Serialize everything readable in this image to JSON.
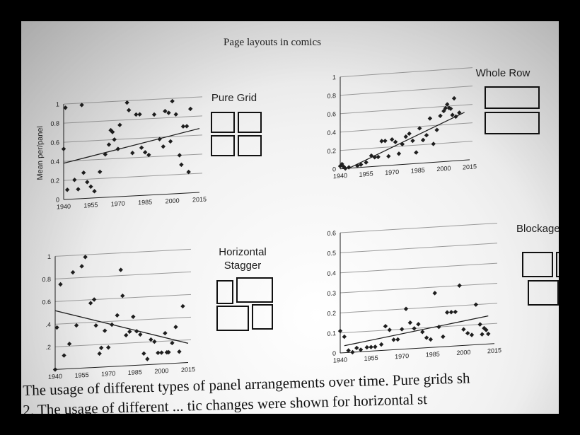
{
  "figure_title": "Page layouts in comics",
  "caption_line1": "The usage of different types of panel arrangements over time. Pure grids sh",
  "caption_line2": "2. The usage of different ... tic changes were shown for horizontal st",
  "colors": {
    "ink": "#1e1e1e",
    "grid": "#9a9a9a",
    "paper": "#f4f4f4"
  },
  "chart_data": [
    {
      "type": "scatter",
      "layout_label": "Pure Grid",
      "icon": "pure-grid-icon",
      "ylabel": "Mean per/panel",
      "xlim": [
        1940,
        2015
      ],
      "ylim": [
        0,
        1
      ],
      "xticks": [
        "1940",
        "1955",
        "1970",
        "1985",
        "2000",
        "2015"
      ],
      "yticks": [
        "0",
        "0.2",
        "0.4",
        "0.6",
        "0.8",
        "1"
      ],
      "trend": [
        [
          1940,
          0.38
        ],
        [
          2015,
          0.67
        ]
      ],
      "points": [
        [
          1940,
          0.53
        ],
        [
          1941,
          0.96
        ],
        [
          1942,
          0.1
        ],
        [
          1946,
          0.2
        ],
        [
          1948,
          0.1
        ],
        [
          1950,
          0.98
        ],
        [
          1951,
          0.27
        ],
        [
          1953,
          0.17
        ],
        [
          1955,
          0.12
        ],
        [
          1957,
          0.07
        ],
        [
          1960,
          0.27
        ],
        [
          1963,
          0.45
        ],
        [
          1965,
          0.55
        ],
        [
          1966,
          0.7
        ],
        [
          1967,
          0.68
        ],
        [
          1968,
          0.6
        ],
        [
          1970,
          0.5
        ],
        [
          1971,
          0.75
        ],
        [
          1975,
          0.98
        ],
        [
          1976,
          0.9
        ],
        [
          1978,
          0.45
        ],
        [
          1980,
          0.85
        ],
        [
          1982,
          0.85
        ],
        [
          1983,
          0.5
        ],
        [
          1985,
          0.45
        ],
        [
          1987,
          0.42
        ],
        [
          1990,
          0.84
        ],
        [
          1993,
          0.58
        ],
        [
          1995,
          0.5
        ],
        [
          1996,
          0.87
        ],
        [
          1998,
          0.85
        ],
        [
          1999,
          0.55
        ],
        [
          2000,
          0.97
        ],
        [
          2002,
          0.83
        ],
        [
          2004,
          0.4
        ],
        [
          2005,
          0.3
        ],
        [
          2006,
          0.7
        ],
        [
          2008,
          0.7
        ],
        [
          2009,
          0.22
        ],
        [
          2010,
          0.88
        ]
      ]
    },
    {
      "type": "scatter",
      "layout_label": "Whole Row",
      "icon": "whole-row-icon",
      "xlim": [
        1940,
        2015
      ],
      "ylim": [
        0,
        1
      ],
      "xticks": [
        "1940",
        "1955",
        "1970",
        "1985",
        "2000",
        "2015"
      ],
      "yticks": [
        "0",
        "0.2",
        "0.4",
        "0.6",
        "0.8",
        "1"
      ],
      "trend": [
        [
          1945,
          0.0
        ],
        [
          2012,
          0.52
        ]
      ],
      "points": [
        [
          1940,
          0.03
        ],
        [
          1941,
          0.05
        ],
        [
          1942,
          0.02
        ],
        [
          1943,
          0.0
        ],
        [
          1945,
          0.01
        ],
        [
          1950,
          0.02
        ],
        [
          1952,
          0.03
        ],
        [
          1955,
          0.05
        ],
        [
          1958,
          0.12
        ],
        [
          1960,
          0.1
        ],
        [
          1962,
          0.1
        ],
        [
          1964,
          0.27
        ],
        [
          1966,
          0.27
        ],
        [
          1968,
          0.1
        ],
        [
          1970,
          0.28
        ],
        [
          1972,
          0.25
        ],
        [
          1974,
          0.12
        ],
        [
          1976,
          0.22
        ],
        [
          1978,
          0.3
        ],
        [
          1980,
          0.33
        ],
        [
          1982,
          0.25
        ],
        [
          1984,
          0.12
        ],
        [
          1986,
          0.38
        ],
        [
          1988,
          0.25
        ],
        [
          1990,
          0.3
        ],
        [
          1992,
          0.48
        ],
        [
          1994,
          0.2
        ],
        [
          1996,
          0.35
        ],
        [
          1998,
          0.5
        ],
        [
          2000,
          0.55
        ],
        [
          2001,
          0.58
        ],
        [
          2002,
          0.62
        ],
        [
          2003,
          0.58
        ],
        [
          2004,
          0.57
        ],
        [
          2005,
          0.5
        ],
        [
          2006,
          0.68
        ],
        [
          2007,
          0.48
        ],
        [
          2009,
          0.52
        ]
      ]
    },
    {
      "type": "scatter",
      "layout_label": "Horizontal\nStagger",
      "icon": "horizontal-stagger-icon",
      "xlim": [
        1940,
        2015
      ],
      "ylim": [
        0,
        1
      ],
      "xticks": [
        "1940",
        "1955",
        "1970",
        "1985",
        "2000",
        "2015"
      ],
      "yticks": [
        "",
        ".2",
        ".4",
        "0.6",
        "0.8",
        "1"
      ],
      "trend": [
        [
          1940,
          0.52
        ],
        [
          2015,
          0.17
        ]
      ],
      "points": [
        [
          1940,
          0.0
        ],
        [
          1941,
          0.37
        ],
        [
          1943,
          0.75
        ],
        [
          1945,
          0.12
        ],
        [
          1948,
          0.22
        ],
        [
          1950,
          0.85
        ],
        [
          1952,
          0.38
        ],
        [
          1955,
          0.9
        ],
        [
          1957,
          0.98
        ],
        [
          1960,
          0.57
        ],
        [
          1962,
          0.6
        ],
        [
          1963,
          0.37
        ],
        [
          1965,
          0.12
        ],
        [
          1966,
          0.17
        ],
        [
          1968,
          0.32
        ],
        [
          1970,
          0.17
        ],
        [
          1972,
          0.37
        ],
        [
          1975,
          0.45
        ],
        [
          1977,
          0.85
        ],
        [
          1978,
          0.62
        ],
        [
          1980,
          0.27
        ],
        [
          1982,
          0.3
        ],
        [
          1984,
          0.43
        ],
        [
          1986,
          0.3
        ],
        [
          1988,
          0.27
        ],
        [
          1990,
          0.1
        ],
        [
          1992,
          0.05
        ],
        [
          1994,
          0.22
        ],
        [
          1996,
          0.2
        ],
        [
          1998,
          0.1
        ],
        [
          2000,
          0.1
        ],
        [
          2002,
          0.27
        ],
        [
          2003,
          0.1
        ],
        [
          2004,
          0.1
        ],
        [
          2006,
          0.18
        ],
        [
          2008,
          0.32
        ],
        [
          2010,
          0.1
        ],
        [
          2012,
          0.5
        ]
      ]
    },
    {
      "type": "scatter",
      "layout_label": "Blockage",
      "icon": "blockage-icon",
      "xlim": [
        1940,
        2015
      ],
      "ylim": [
        0,
        0.6
      ],
      "xticks": [
        "1940",
        "1955",
        "1970",
        "1985",
        "2000",
        "2015"
      ],
      "yticks": [
        "0",
        "0.1",
        "0.2",
        "0.3",
        "0.4",
        "0.5",
        "0.6"
      ],
      "trend": [
        [
          1942,
          0.035
        ],
        [
          2012,
          0.14
        ]
      ],
      "points": [
        [
          1940,
          0.11
        ],
        [
          1942,
          0.08
        ],
        [
          1944,
          0.01
        ],
        [
          1946,
          0.0
        ],
        [
          1948,
          0.02
        ],
        [
          1950,
          0.01
        ],
        [
          1953,
          0.02
        ],
        [
          1955,
          0.02
        ],
        [
          1957,
          0.02
        ],
        [
          1960,
          0.03
        ],
        [
          1962,
          0.12
        ],
        [
          1964,
          0.1
        ],
        [
          1966,
          0.05
        ],
        [
          1968,
          0.05
        ],
        [
          1970,
          0.1
        ],
        [
          1972,
          0.2
        ],
        [
          1974,
          0.13
        ],
        [
          1976,
          0.1
        ],
        [
          1978,
          0.12
        ],
        [
          1980,
          0.08
        ],
        [
          1982,
          0.05
        ],
        [
          1984,
          0.04
        ],
        [
          1986,
          0.27
        ],
        [
          1988,
          0.1
        ],
        [
          1990,
          0.05
        ],
        [
          1992,
          0.17
        ],
        [
          1994,
          0.17
        ],
        [
          1996,
          0.17
        ],
        [
          1998,
          0.3
        ],
        [
          2000,
          0.08
        ],
        [
          2002,
          0.06
        ],
        [
          2004,
          0.05
        ],
        [
          2006,
          0.2
        ],
        [
          2008,
          0.1
        ],
        [
          2009,
          0.05
        ],
        [
          2010,
          0.08
        ],
        [
          2011,
          0.07
        ],
        [
          2012,
          0.05
        ]
      ]
    }
  ]
}
